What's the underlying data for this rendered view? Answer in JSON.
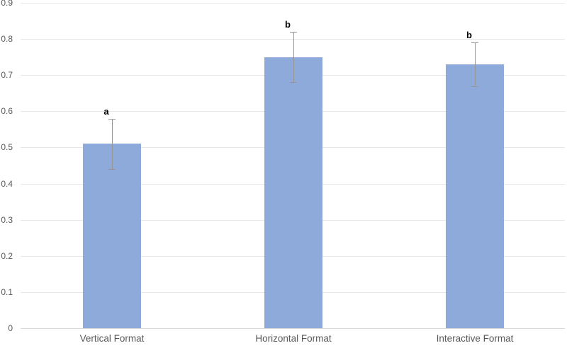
{
  "chart_data": {
    "type": "bar",
    "title": "",
    "xlabel": "",
    "ylabel": "",
    "categories": [
      "Vertical Format",
      "Horizontal Format",
      "Interactive Format"
    ],
    "values": [
      0.51,
      0.75,
      0.73
    ],
    "error_low": [
      0.44,
      0.68,
      0.67
    ],
    "error_high": [
      0.58,
      0.82,
      0.79
    ],
    "significance_letters": [
      "a",
      "b",
      "b"
    ],
    "ylim": [
      0,
      0.9
    ],
    "ytick_labels": [
      "0",
      "0.1",
      "0.2",
      "0.3",
      "0.4",
      "0.5",
      "0.6",
      "0.7",
      "0.8",
      "0.9"
    ],
    "grid": true,
    "legend": false,
    "bar_color": "#8EAADB",
    "error_bar_color": "#969696",
    "gridline_color": "#E6E6E6",
    "axis_line_color": "#D9D9D9",
    "tick_label_color": "#595959",
    "letter_color": "#000000"
  }
}
